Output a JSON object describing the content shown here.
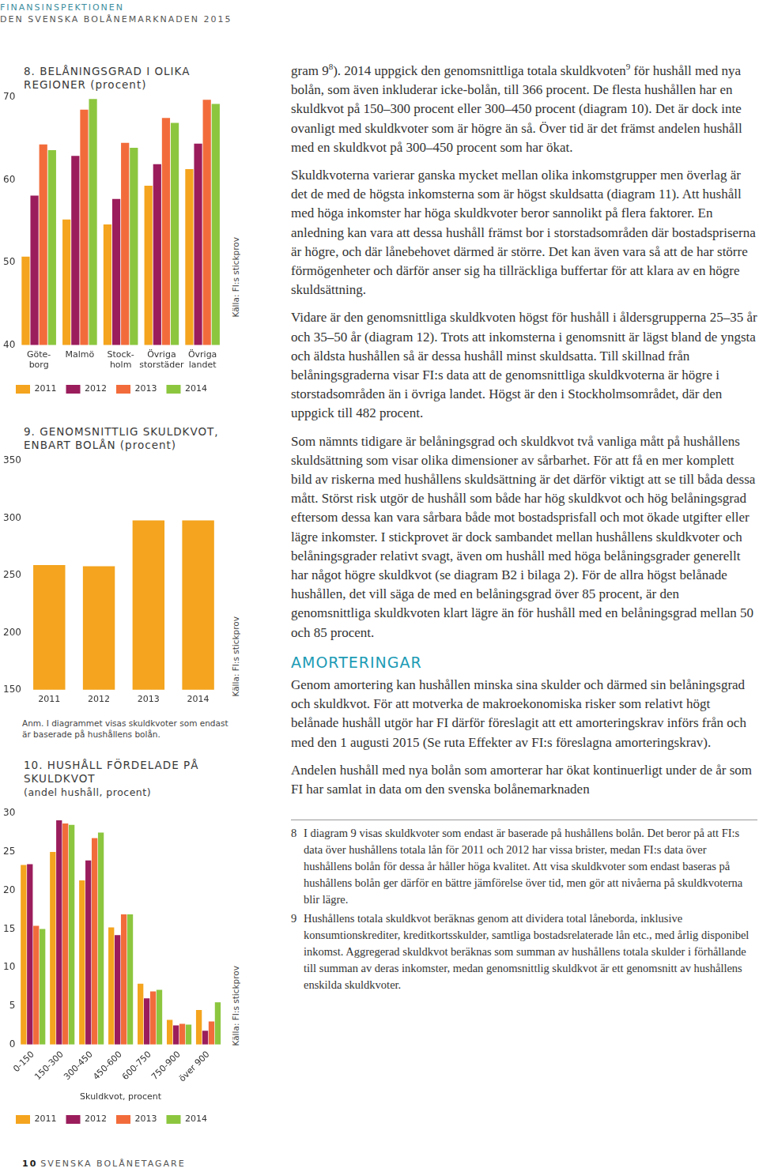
{
  "document": {
    "header": {
      "organization": "FINANSINSPEKTIONEN",
      "publication": "DEN SVENSKA BOLÅNEMARKNADEN 2015"
    },
    "body": [
      {
        "type": "paragraph",
        "segments": [
          "gram 9",
          {
            "sup": "8"
          },
          "). 2014 uppgick den genomsnittliga totala skuldkvoten",
          {
            "sup": "9"
          },
          " för hushåll med nya bolån, som även inkluderar icke-bolån, till 366 procent. De flesta hushållen har en skuldkvot på 150–300 procent eller 300–450 procent (diagram 10). Det är dock inte ovanligt med skuldkvoter som är högre än så. Över tid är det främst andelen hushåll med en skuldkvot på 300–450 procent som har ökat."
        ]
      },
      {
        "type": "paragraph",
        "segments": [
          "Skuldkvoterna varierar ganska mycket mellan olika inkomstgrupper men överlag är det de med de högsta inkomsterna som är högst skuldsatta (diagram 11). Att hushåll med höga inkomster har höga skuldkvoter beror sannolikt på flera faktorer. En anledning kan vara att dessa hushåll främst bor i storstadsområden där bostadspriserna är högre, och där lånebehovet därmed är större. Det kan även vara så att de har större förmögenheter och därför anser sig ha tillräckliga buffertar för att klara av en högre skuldsättning."
        ]
      },
      {
        "type": "paragraph",
        "segments": [
          "Vidare är den genomsnittliga skuldkvoten högst för hushåll i åldersgrupperna 25–35 år och 35–50 år (diagram 12). Trots att inkomsterna i genomsnitt är lägst bland de yngsta och äldsta hushållen så är dessa hushåll minst skuldsatta. Till skillnad från belåningsgraderna visar FI:s data att de genomsnittliga skuldkvoterna är högre i storstadsområden än i övriga landet. Högst är den i Stockholmsområdet, där den uppgick till 482 procent."
        ]
      },
      {
        "type": "paragraph",
        "segments": [
          "Som nämnts tidigare är belåningsgrad och skuldkvot två vanliga mått på hushållens skuldsättning som visar olika dimensioner av sårbarhet. För att få en mer komplett bild av riskerna med hushållens skuldsättning är det därför viktigt att se till båda dessa mått. Störst risk utgör de hushåll som både har hög skuldkvot och hög belåningsgrad eftersom dessa kan vara sårbara både mot bostadsprisfall och mot ökade utgifter eller lägre inkomster. I stickprovet är dock sambandet mellan hushållens skuldkvoter och belåningsgrader relativt svagt, även om hushåll med höga belåningsgrader generellt har något högre skuldkvot (se diagram B2 i bilaga 2). För de allra högst belånade hushållen, det vill säga de med en belåningsgrad över 85 procent, är den genomsnittliga skuldkvoten klart lägre än för hushåll med en belåningsgrad mellan 50 och 85 procent."
        ]
      },
      {
        "type": "heading",
        "text": "AMORTERINGAR"
      },
      {
        "type": "paragraph",
        "segments": [
          "Genom amortering kan hushållen minska sina skulder och därmed sin belåningsgrad och skuldkvot. För att motverka de makroekonomiska risker som relativt högt belånade hushåll utgör har FI därför föreslagit att ett amorteringskrav införs från och med den 1 augusti 2015 (Se ruta Effekter av FI:s föreslagna amorteringskrav)."
        ]
      },
      {
        "type": "paragraph",
        "segments": [
          "Andelen hushåll med nya bolån som amorterar har ökat kontinuerligt under de år som FI har samlat in data om den svenska bolånemarknaden"
        ]
      }
    ],
    "footnotes": [
      {
        "number": "8",
        "text": "I diagram 9 visas skuldkvoter som endast är baserade på hushållens bolån. Det beror på att FI:s data över hushållens totala lån för 2011 och 2012 har vissa brister, medan FI:s data över hushållens bolån för dessa år håller höga kvalitet. Att visa skuldkvoter som endast baseras på hushållens bolån ger därför en bättre jämförelse över tid, men gör att nivåerna på skuldkvoterna blir lägre."
      },
      {
        "number": "9",
        "text": "Hushållens totala skuldkvot beräknas genom att dividera total låneborda, inklusive konsumtionskrediter, kreditkortsskulder, samtliga bostadsrelaterade lån etc., med årlig disponibel inkomst. Aggregerad skuldkvot beräknas som summan av hushållens totala skulder i förhållande till summan av deras inkomster, medan genomsnittlig skuldkvot är ett genomsnitt av hushållens enskilda skuldkvoter."
      }
    ],
    "footer": {
      "page": "10",
      "section": "SVENSKA BOLÅNETAGARE"
    }
  },
  "chart_data": [
    {
      "type": "bar",
      "title": "8. BELÅNINGSGRAD I OLIKA REGIONER (procent)",
      "categories": [
        "Göte-\nborg",
        "Malmö",
        "Stock-\nholm",
        "Övriga\nstorstäder",
        "Övriga\nlandet"
      ],
      "series": [
        {
          "name": "2011",
          "color": "#f4a41e",
          "values": [
            50.7,
            55.2,
            54.6,
            59.3,
            61.3
          ]
        },
        {
          "name": "2012",
          "color": "#9b1d5c",
          "values": [
            58.1,
            62.9,
            57.7,
            61.9,
            64.4
          ]
        },
        {
          "name": "2013",
          "color": "#f26c3b",
          "values": [
            64.3,
            68.5,
            64.5,
            67.5,
            69.7
          ]
        },
        {
          "name": "2014",
          "color": "#8cc63f",
          "values": [
            63.6,
            69.8,
            63.9,
            66.9,
            69.2
          ]
        }
      ],
      "ylim": [
        40,
        70
      ],
      "yticks": [
        40,
        50,
        60,
        70
      ],
      "grid": false,
      "legend": "bottom",
      "source": "Källa: FI:s stickprov"
    },
    {
      "type": "bar",
      "title": "9. GENOMSNITTLIG SKULDKVOT, ENBART BOLÅN (procent)",
      "categories": [
        "2011",
        "2012",
        "2013",
        "2014"
      ],
      "values": [
        259,
        258,
        298,
        298
      ],
      "color": "#f4a41e",
      "ylim": [
        150,
        350
      ],
      "yticks": [
        150,
        200,
        250,
        300,
        350
      ],
      "grid": false,
      "note": "Anm. I diagrammet visas skuldkvoter som endast är baserade på hushållens bolån.",
      "source": "Källa: FI:s stickprov"
    },
    {
      "type": "bar",
      "title": "10. HUSHÅLL FÖRDELADE PÅ SKULDKVOT",
      "subtitle": "(andel hushåll, procent)",
      "categories": [
        "0-150",
        "150-300",
        "300-450",
        "450-600",
        "600-750",
        "750-900",
        "över 900"
      ],
      "series": [
        {
          "name": "2011",
          "color": "#f4a41e",
          "values": [
            23.3,
            25.0,
            21.3,
            15.2,
            7.9,
            3.2,
            4.5
          ]
        },
        {
          "name": "2012",
          "color": "#9b1d5c",
          "values": [
            23.4,
            29.1,
            23.9,
            14.2,
            6.0,
            2.5,
            1.8
          ]
        },
        {
          "name": "2013",
          "color": "#f26c3b",
          "values": [
            15.4,
            28.7,
            26.8,
            16.9,
            6.9,
            2.7,
            3.0
          ]
        },
        {
          "name": "2014",
          "color": "#8cc63f",
          "values": [
            15.0,
            28.5,
            27.5,
            16.9,
            7.1,
            2.6,
            5.5
          ]
        }
      ],
      "xlabel": "Skuldkvot, procent",
      "ylim": [
        0,
        30
      ],
      "yticks": [
        0,
        5,
        10,
        15,
        20,
        25,
        30
      ],
      "grid": false,
      "legend": "bottom",
      "source": "Källa: FI:s stickprov"
    }
  ]
}
